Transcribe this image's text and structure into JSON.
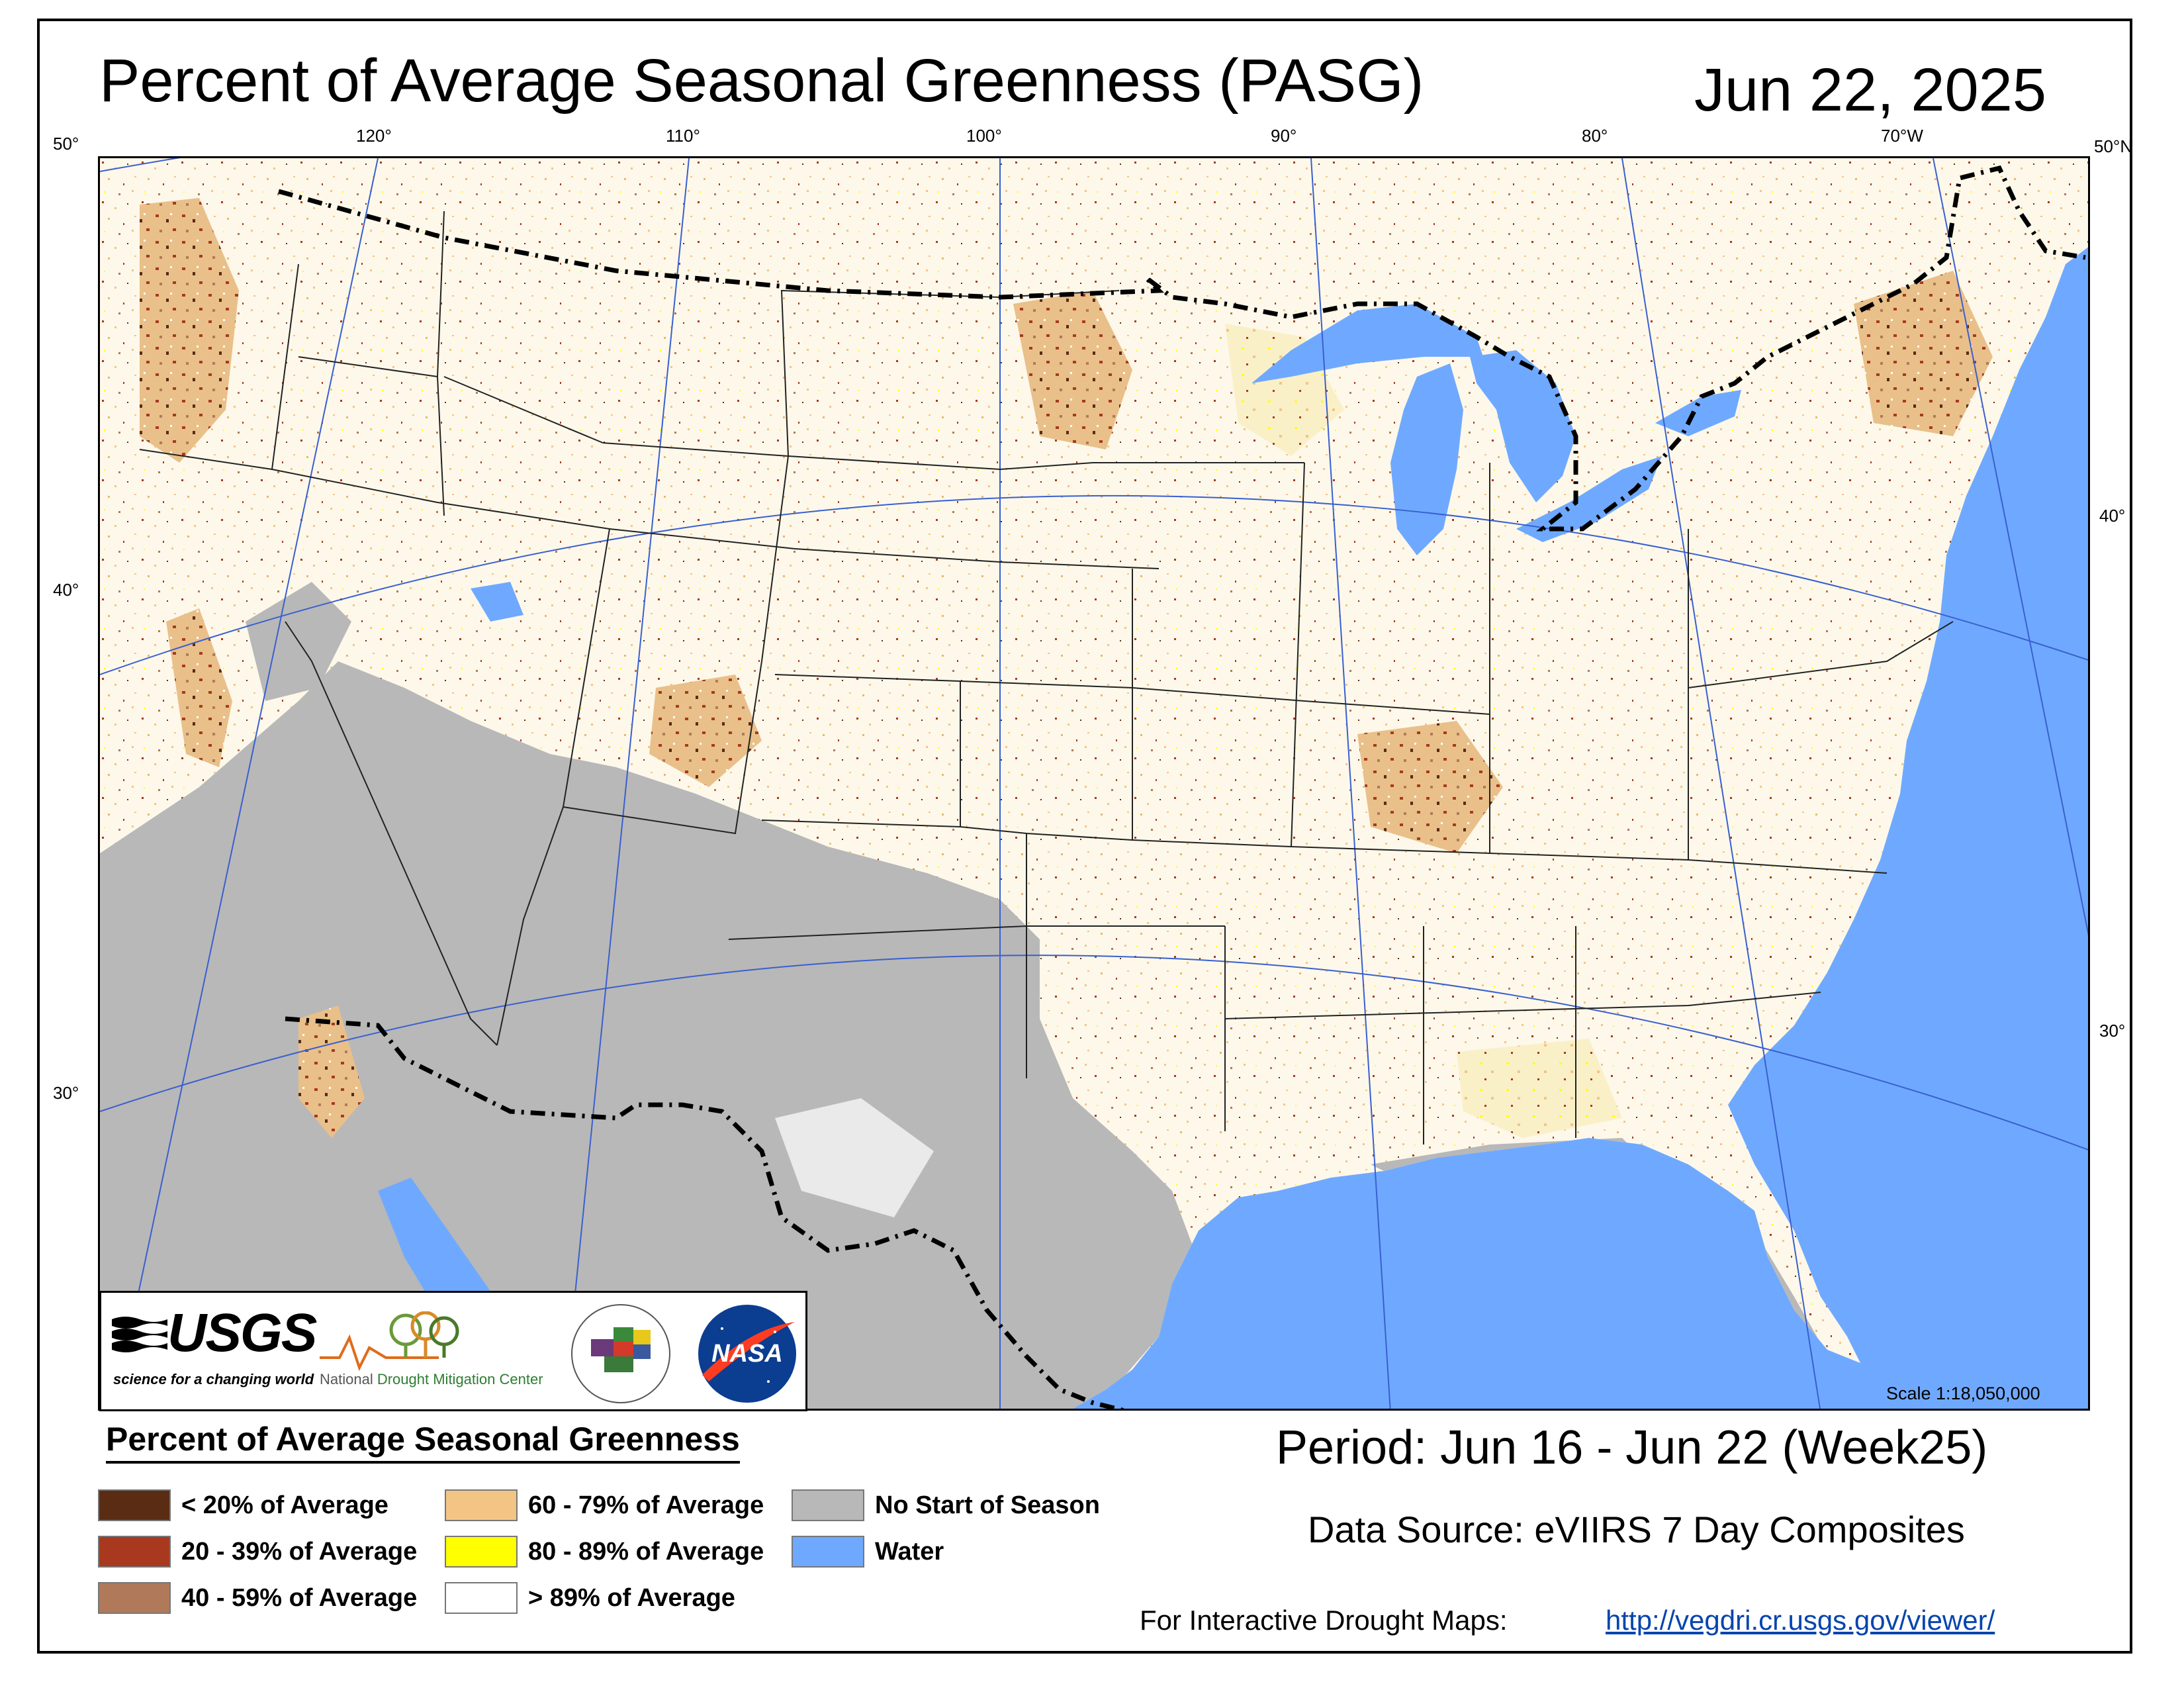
{
  "header": {
    "title": "Percent of Average Seasonal Greenness (PASG)",
    "date": "Jun 22, 2025"
  },
  "graticule": {
    "top_labels": [
      "50°",
      "120°",
      "110°",
      "100°",
      "90°",
      "80°",
      "70°W",
      "50°N"
    ],
    "left_labels": [
      "40°",
      "30°"
    ],
    "right_labels": [
      "40°",
      "30°"
    ]
  },
  "map": {
    "scale": "Scale 1:18,050,000",
    "colors": {
      "water": "#6fa9ff",
      "land": "#fdf8ea",
      "no_start": "#b8b8b8",
      "lt20": "#5a2c14",
      "p20_39": "#a8391f",
      "p40_59": "#b07a5a",
      "p60_79": "#f3c585",
      "p80_89": "#ffff00"
    }
  },
  "logos": {
    "usgs": "USGS",
    "usgs_tagline": "science for a changing world",
    "ndmc_prefix": "National ",
    "ndmc_highlight": "Drought Mitigation Center",
    "nasa": "NASA"
  },
  "legend": {
    "title": "Percent of Average Seasonal Greenness",
    "items": [
      {
        "label": "< 20% of Average",
        "color": "#5a2c14"
      },
      {
        "label": "20 - 39% of Average",
        "color": "#a8391f"
      },
      {
        "label": "40 - 59% of Average",
        "color": "#b07a5a"
      },
      {
        "label": "60 - 79% of Average",
        "color": "#f3c585"
      },
      {
        "label": "80 - 89% of Average",
        "color": "#ffff00"
      },
      {
        "label": "> 89% of Average",
        "color": "#ffffff"
      },
      {
        "label": "No Start of Season",
        "color": "#b8b8b8"
      },
      {
        "label": "Water",
        "color": "#6fa9ff"
      }
    ]
  },
  "footer": {
    "period": "Period:  Jun 16 - Jun 22 (Week25)",
    "source": "Data Source:  eVIIRS 7 Day Composites",
    "interactive_label": "For Interactive Drought Maps:",
    "link": "http://vegdri.cr.usgs.gov/viewer/"
  }
}
